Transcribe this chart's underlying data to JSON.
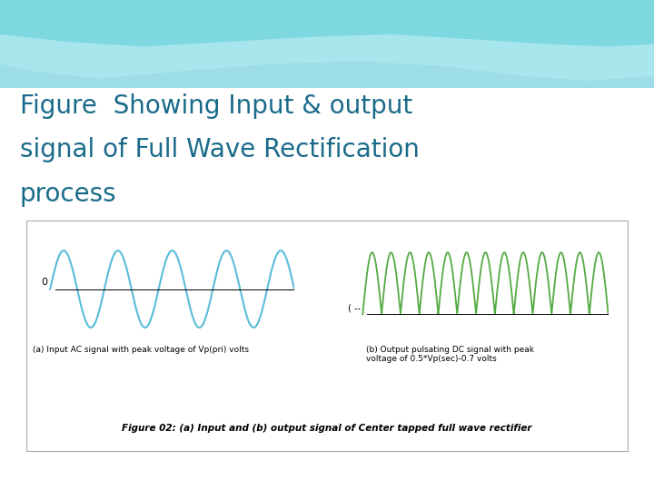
{
  "title_line1": "Figure  Showing Input & output",
  "title_line2": "signal of Full Wave Rectification",
  "title_line3": "process",
  "title_color": "#1a6b8a",
  "bg_top_color": "#7dd8e0",
  "bg_mid_color": "#b8eaf0",
  "input_signal_color": "#5bbcd8",
  "output_signal_color": "#55aa44",
  "caption_a": "(a) Input AC signal with peak voltage of Vp(pri) volts",
  "caption_b": "(b) Output pulsating DC signal with peak\nvoltage of 0.5*Vp(sec)-0.7 volts",
  "figure_caption": "Figure 02: (a) Input and (b) output signal of Center tapped full wave rectifier",
  "zero_label": "0",
  "dash_label": "( --"
}
